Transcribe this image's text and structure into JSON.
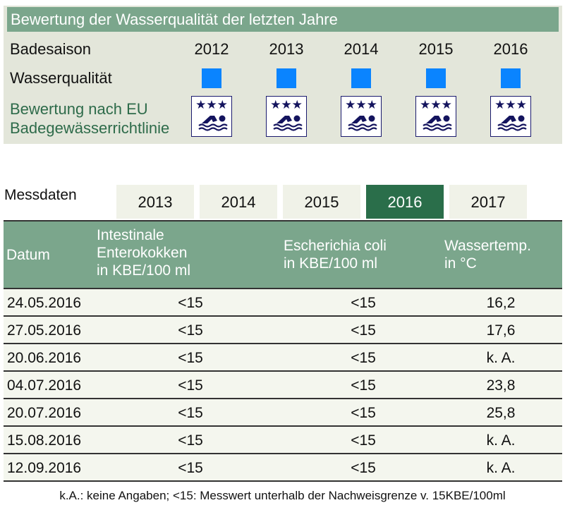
{
  "quality": {
    "title": "Bewertung der Wasserqualität der letzten Jahre",
    "season_label": "Badesaison",
    "quality_label": "Wasserqualität",
    "eu_label_1": "Bewertung nach EU",
    "eu_label_2": "Badegewässerrichtlinie",
    "years": [
      "2012",
      "2013",
      "2014",
      "2015",
      "2016"
    ],
    "quality_color": "#0a84ff",
    "stars": 3
  },
  "measurements": {
    "label": "Messdaten",
    "tabs": [
      "2013",
      "2014",
      "2015",
      "2016",
      "2017"
    ],
    "active_tab": "2016",
    "headers": {
      "date": "Datum",
      "entero_1": "Intestinale",
      "entero_2": "Enterokokken",
      "entero_3": "in KBE/100 ml",
      "ecoli_1": "Escherichia coli",
      "ecoli_2": "in KBE/100 ml",
      "temp_1": "Wassertemp.",
      "temp_2": "in °C"
    },
    "rows": [
      [
        "24.05.2016",
        "<15",
        "<15",
        "16,2"
      ],
      [
        "27.05.2016",
        "<15",
        "<15",
        "17,6"
      ],
      [
        "20.06.2016",
        "<15",
        "<15",
        "k. A."
      ],
      [
        "04.07.2016",
        "<15",
        "<15",
        "23,8"
      ],
      [
        "20.07.2016",
        "<15",
        "<15",
        "25,8"
      ],
      [
        "15.08.2016",
        "<15",
        "<15",
        "k. A."
      ],
      [
        "12.09.2016",
        "<15",
        "<15",
        "k. A."
      ]
    ],
    "footnote": "k.A.: keine Angaben; <15: Messwert unterhalb der Nachweisgrenze v. 15KBE/100ml"
  }
}
